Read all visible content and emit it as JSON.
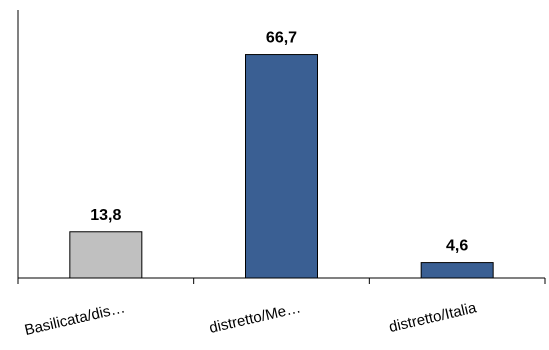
{
  "chart_data": {
    "type": "bar",
    "title": "",
    "xlabel": "",
    "ylabel": "",
    "categories": [
      "Basilicata/dis…",
      "distretto/Me…",
      "distretto/Italia"
    ],
    "values": [
      13.8,
      66.7,
      4.6
    ],
    "value_labels": [
      "13,8",
      "66,7",
      "4,6"
    ],
    "bar_colors": [
      "#c0c0c0",
      "#3a5f93",
      "#3a5f93"
    ],
    "ylim": [
      0,
      80
    ],
    "grid": false,
    "legend": "none"
  }
}
